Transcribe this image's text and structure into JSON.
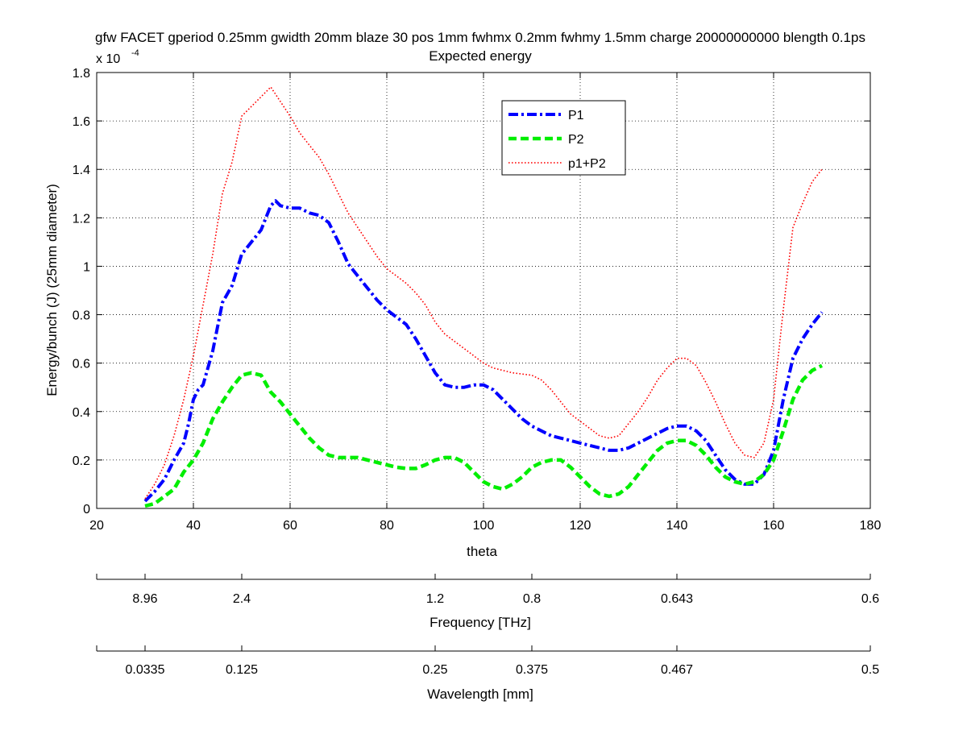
{
  "chart_data": {
    "type": "line",
    "title": "gfw FACET gperiod 0.25mm gwidth 20mm blaze 30 pos 1mm fwhmx 0.2mm fwhmy 1.5mm charge 20000000000 blength 0.1ps",
    "subtitle": "Expected energy",
    "xlabel": "theta",
    "ylabel": "Energy/bunch (J) (25mm diameter)",
    "y_multiplier_label": "x 10",
    "y_multiplier_exponent": "-4",
    "xlim": [
      20,
      180
    ],
    "ylim": [
      0,
      1.8
    ],
    "x_ticks": [
      "20",
      "40",
      "60",
      "80",
      "100",
      "120",
      "140",
      "160",
      "180"
    ],
    "y_ticks": [
      "0",
      "0.2",
      "0.4",
      "0.6",
      "0.8",
      "1",
      "1.2",
      "1.4",
      "1.6",
      "1.8"
    ],
    "grid": true,
    "legend_position": "top-center",
    "series": [
      {
        "name": "P1",
        "color": "#0000ff",
        "style": "dashdot",
        "x": [
          30,
          32,
          34,
          36,
          38,
          39,
          40,
          41,
          42,
          44,
          46,
          48,
          50,
          52,
          54,
          56,
          57,
          58,
          60,
          62,
          64,
          66,
          68,
          70,
          72,
          74,
          76,
          78,
          80,
          82,
          84,
          86,
          88,
          90,
          92,
          94,
          96,
          98,
          100,
          102,
          104,
          106,
          108,
          110,
          112,
          114,
          116,
          118,
          120,
          122,
          124,
          126,
          128,
          130,
          132,
          134,
          136,
          138,
          140,
          142,
          144,
          146,
          148,
          150,
          152,
          154,
          156,
          158,
          160,
          162,
          164,
          166,
          168,
          170
        ],
        "y": [
          0.03,
          0.07,
          0.12,
          0.2,
          0.27,
          0.35,
          0.45,
          0.49,
          0.51,
          0.65,
          0.85,
          0.92,
          1.05,
          1.1,
          1.15,
          1.25,
          1.27,
          1.25,
          1.24,
          1.24,
          1.22,
          1.21,
          1.18,
          1.1,
          1.01,
          0.96,
          0.91,
          0.86,
          0.82,
          0.79,
          0.76,
          0.7,
          0.63,
          0.56,
          0.51,
          0.5,
          0.5,
          0.51,
          0.51,
          0.49,
          0.45,
          0.41,
          0.37,
          0.34,
          0.32,
          0.3,
          0.29,
          0.28,
          0.27,
          0.26,
          0.25,
          0.24,
          0.24,
          0.25,
          0.27,
          0.29,
          0.31,
          0.33,
          0.34,
          0.34,
          0.32,
          0.28,
          0.22,
          0.16,
          0.12,
          0.1,
          0.1,
          0.14,
          0.24,
          0.45,
          0.62,
          0.7,
          0.76,
          0.81
        ]
      },
      {
        "name": "P2",
        "color": "#00ee00",
        "style": "dashed",
        "x": [
          30,
          32,
          34,
          36,
          38,
          40,
          42,
          44,
          46,
          48,
          50,
          52,
          54,
          56,
          58,
          60,
          62,
          64,
          66,
          68,
          70,
          72,
          74,
          76,
          78,
          80,
          82,
          84,
          86,
          88,
          90,
          92,
          94,
          96,
          98,
          100,
          102,
          104,
          106,
          108,
          110,
          112,
          114,
          116,
          118,
          120,
          122,
          124,
          126,
          128,
          130,
          132,
          134,
          136,
          138,
          140,
          142,
          144,
          146,
          148,
          150,
          152,
          154,
          156,
          158,
          160,
          162,
          164,
          166,
          168,
          170
        ],
        "y": [
          0.01,
          0.02,
          0.05,
          0.08,
          0.15,
          0.2,
          0.27,
          0.37,
          0.44,
          0.5,
          0.55,
          0.56,
          0.55,
          0.48,
          0.44,
          0.39,
          0.34,
          0.29,
          0.25,
          0.22,
          0.21,
          0.21,
          0.21,
          0.2,
          0.19,
          0.18,
          0.17,
          0.165,
          0.165,
          0.18,
          0.2,
          0.21,
          0.21,
          0.19,
          0.15,
          0.11,
          0.09,
          0.08,
          0.1,
          0.13,
          0.17,
          0.19,
          0.2,
          0.2,
          0.17,
          0.13,
          0.09,
          0.06,
          0.05,
          0.06,
          0.09,
          0.14,
          0.19,
          0.24,
          0.27,
          0.28,
          0.28,
          0.26,
          0.22,
          0.17,
          0.13,
          0.11,
          0.1,
          0.11,
          0.14,
          0.2,
          0.32,
          0.45,
          0.53,
          0.57,
          0.59
        ]
      },
      {
        "name": "p1+P2",
        "color": "#ff0000",
        "style": "dotted",
        "x": [
          30,
          32,
          34,
          36,
          38,
          40,
          42,
          44,
          46,
          48,
          50,
          52,
          54,
          56,
          58,
          60,
          62,
          64,
          66,
          68,
          70,
          72,
          74,
          76,
          78,
          80,
          82,
          84,
          86,
          88,
          90,
          92,
          94,
          96,
          98,
          100,
          102,
          104,
          106,
          108,
          110,
          112,
          114,
          116,
          118,
          120,
          122,
          124,
          126,
          128,
          130,
          132,
          134,
          136,
          138,
          140,
          142,
          144,
          146,
          148,
          150,
          152,
          154,
          156,
          158,
          160,
          162,
          164,
          166,
          168,
          170
        ],
        "y": [
          0.04,
          0.1,
          0.18,
          0.3,
          0.45,
          0.63,
          0.84,
          1.05,
          1.3,
          1.43,
          1.62,
          1.66,
          1.7,
          1.74,
          1.68,
          1.62,
          1.55,
          1.5,
          1.45,
          1.38,
          1.3,
          1.22,
          1.16,
          1.1,
          1.04,
          0.99,
          0.96,
          0.93,
          0.89,
          0.84,
          0.77,
          0.72,
          0.69,
          0.66,
          0.63,
          0.6,
          0.58,
          0.57,
          0.56,
          0.555,
          0.55,
          0.53,
          0.49,
          0.44,
          0.39,
          0.36,
          0.33,
          0.3,
          0.29,
          0.3,
          0.35,
          0.4,
          0.46,
          0.53,
          0.58,
          0.62,
          0.62,
          0.59,
          0.52,
          0.44,
          0.35,
          0.27,
          0.22,
          0.21,
          0.27,
          0.45,
          0.82,
          1.16,
          1.26,
          1.35,
          1.4
        ]
      }
    ],
    "secondary_axes": [
      {
        "label": "Frequency [THz]",
        "ticks": [
          "8.96",
          "2.4",
          "1.2",
          "0.8",
          "0.643",
          "0.6"
        ]
      },
      {
        "label": "Wavelength [mm]",
        "ticks": [
          "0.0335",
          "0.125",
          "0.25",
          "0.375",
          "0.467",
          "0.5"
        ]
      }
    ]
  }
}
